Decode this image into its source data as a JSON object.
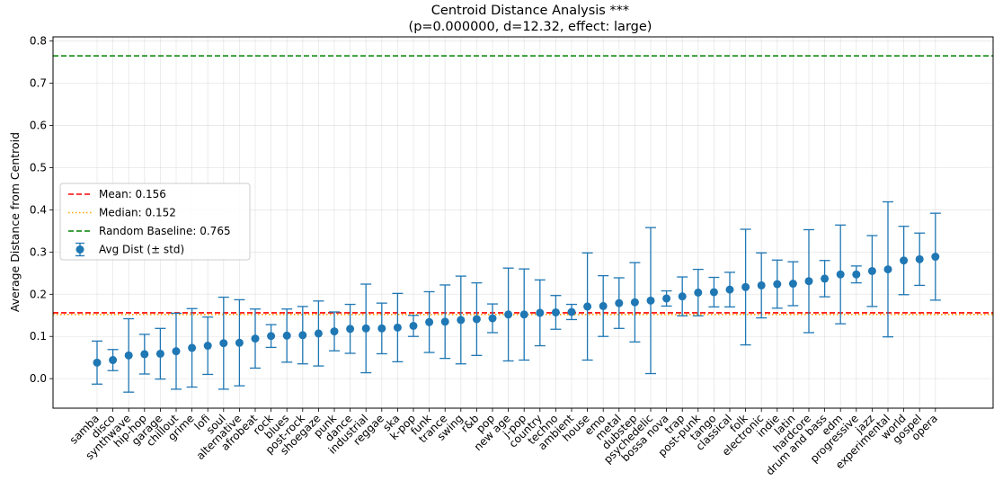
{
  "chart_data": {
    "type": "scatter",
    "title": "Centroid Distance Analysis ***",
    "subtitle": "(p=0.000000, d=12.32, effect: large)",
    "xlabel": "",
    "ylabel": "Average Distance from Centroid",
    "ylim": [
      -0.07,
      0.81
    ],
    "yticks": [
      "0.0",
      "0.1",
      "0.2",
      "0.3",
      "0.4",
      "0.5",
      "0.6",
      "0.7",
      "0.8"
    ],
    "grid": true,
    "legend_position": "center-left",
    "categories": [
      "samba",
      "disco",
      "synthwave",
      "hip-hop",
      "garage",
      "chillout",
      "grime",
      "lofi",
      "soul",
      "alternative",
      "afrobeat",
      "rock",
      "blues",
      "post-rock",
      "shoegaze",
      "punk",
      "dance",
      "industrial",
      "reggae",
      "ska",
      "k-pop",
      "funk",
      "trance",
      "swing",
      "r&b",
      "pop",
      "new age",
      "j-pop",
      "country",
      "techno",
      "ambient",
      "house",
      "emo",
      "metal",
      "dubstep",
      "psychedelic",
      "bossa nova",
      "trap",
      "post-punk",
      "tango",
      "classical",
      "folk",
      "electronic",
      "indie",
      "latin",
      "hardcore",
      "drum and bass",
      "edm",
      "progressive",
      "jazz",
      "experimental",
      "world",
      "gospel",
      "opera"
    ],
    "series": [
      {
        "name": "Avg Dist (± std)",
        "color": "#1f77b4",
        "values": [
          0.038,
          0.044,
          0.055,
          0.058,
          0.059,
          0.065,
          0.073,
          0.078,
          0.084,
          0.085,
          0.095,
          0.101,
          0.102,
          0.103,
          0.107,
          0.112,
          0.118,
          0.119,
          0.119,
          0.121,
          0.125,
          0.134,
          0.135,
          0.139,
          0.141,
          0.143,
          0.152,
          0.152,
          0.156,
          0.157,
          0.158,
          0.171,
          0.172,
          0.179,
          0.181,
          0.185,
          0.19,
          0.195,
          0.204,
          0.205,
          0.211,
          0.217,
          0.221,
          0.224,
          0.225,
          0.231,
          0.237,
          0.247,
          0.247,
          0.255,
          0.259,
          0.28,
          0.283,
          0.289
        ],
        "std": [
          0.051,
          0.025,
          0.087,
          0.047,
          0.06,
          0.09,
          0.093,
          0.068,
          0.109,
          0.102,
          0.07,
          0.027,
          0.063,
          0.068,
          0.077,
          0.046,
          0.058,
          0.105,
          0.06,
          0.081,
          0.025,
          0.072,
          0.087,
          0.104,
          0.086,
          0.034,
          0.11,
          0.108,
          0.078,
          0.04,
          0.018,
          0.127,
          0.072,
          0.06,
          0.094,
          0.173,
          0.018,
          0.046,
          0.055,
          0.035,
          0.041,
          0.137,
          0.077,
          0.057,
          0.052,
          0.122,
          0.043,
          0.117,
          0.02,
          0.084,
          0.16,
          0.081,
          0.062,
          0.103
        ]
      }
    ],
    "reference_lines": [
      {
        "name": "Mean: 0.156",
        "value": 0.156,
        "color": "#ff0000",
        "style": "dashed"
      },
      {
        "name": "Median: 0.152",
        "value": 0.152,
        "color": "#ffa500",
        "style": "dotted"
      },
      {
        "name": "Random Baseline: 0.765",
        "value": 0.765,
        "color": "#008000",
        "style": "dashed"
      }
    ]
  }
}
